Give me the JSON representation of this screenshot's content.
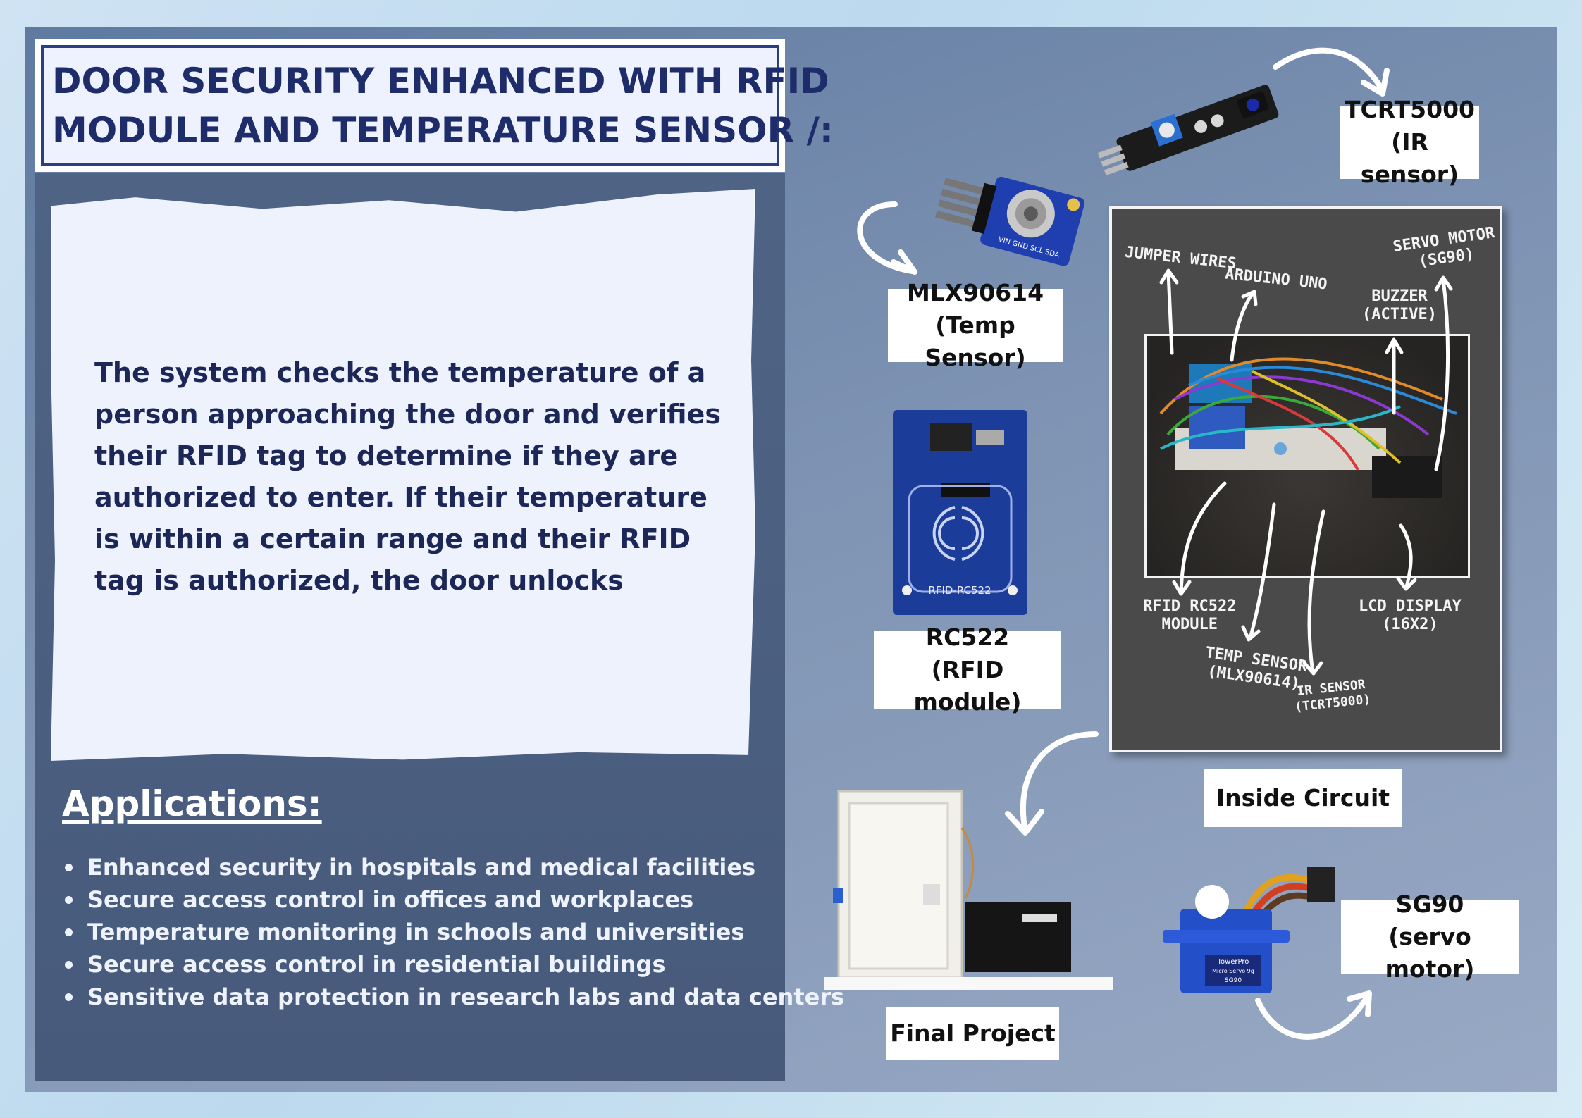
{
  "title": {
    "line1": "DOOR SECURITY ENHANCED WITH RFID",
    "line2": "MODULE AND TEMPERATURE SENSOR /:"
  },
  "description": "The system checks the temperature of a person approaching the door and verifies their RFID tag to determine if they are authorized to enter. If their temperature is within a certain range and their RFID tag is authorized, the door unlocks",
  "applications": {
    "heading": "Applications:",
    "items": [
      "Enhanced security in hospitals and medical facilities",
      "Secure access control in offices and workplaces",
      "Temperature monitoring in schools and universities",
      "Secure access control in residential buildings",
      "Sensitive data protection in research labs and data centers"
    ]
  },
  "components": {
    "ir_sensor": {
      "name": "TCRT5000",
      "desc": "(IR sensor)"
    },
    "temp_sensor": {
      "name": "MLX90614",
      "desc": "(Temp Sensor)"
    },
    "rfid": {
      "name": "RC522",
      "desc": "(RFID module)"
    },
    "servo": {
      "name": "SG90",
      "desc": "(servo motor)"
    },
    "inside_circuit": "Inside Circuit",
    "final_project": "Final Project"
  },
  "circuit_labels": {
    "jumper": "JUMPER WIRES",
    "arduino": "ARDUINO UNO",
    "servo_motor": "SERVO MOTOR",
    "servo_model": "(SG90)",
    "buzzer": "BUZZER",
    "buzzer_type": "(ACTIVE)",
    "rfid": "RFID RC522",
    "rfid2": "MODULE",
    "temp": "TEMP SENSOR",
    "temp2": "(MLX90614)",
    "ir": "IR SENSOR",
    "ir2": "(TCRT5000)",
    "lcd": "LCD DISPLAY",
    "lcd2": "(16X2)"
  },
  "board_silkscreen": {
    "rfid_board": "RFID-RC522",
    "servo_brand": "TowerPro",
    "servo_type": "Micro Servo 9g",
    "servo_model": "SG90",
    "temp_pins": "VIN GND SCL SDA"
  },
  "colors": {
    "title_text": "#1e2d6a",
    "desc_text": "#1c2758",
    "panel": "#4f6485",
    "poster_bg": "#7e93b3"
  }
}
